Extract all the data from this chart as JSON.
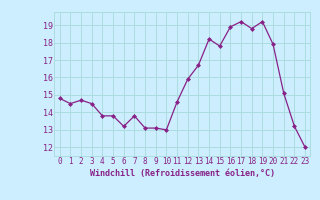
{
  "x": [
    0,
    1,
    2,
    3,
    4,
    5,
    6,
    7,
    8,
    9,
    10,
    11,
    12,
    13,
    14,
    15,
    16,
    17,
    18,
    19,
    20,
    21,
    22,
    23
  ],
  "y": [
    14.8,
    14.5,
    14.7,
    14.5,
    13.8,
    13.8,
    13.2,
    13.8,
    13.1,
    13.1,
    13.0,
    14.6,
    15.9,
    16.7,
    18.2,
    17.8,
    18.9,
    19.2,
    18.8,
    19.2,
    17.9,
    15.1,
    13.2,
    12.0
  ],
  "line_color": "#882288",
  "marker": "D",
  "marker_size": 2.0,
  "bg_color": "#cceeff",
  "grid_color": "#aadddd",
  "xlabel": "Windchill (Refroidissement éolien,°C)",
  "xlabel_color": "#882288",
  "tick_color": "#882288",
  "label_fontsize": 5.5,
  "xlabel_fontsize": 6.0,
  "ylim": [
    11.5,
    19.75
  ],
  "xlim": [
    -0.5,
    23.5
  ],
  "yticks": [
    12,
    13,
    14,
    15,
    16,
    17,
    18,
    19
  ],
  "xticks": [
    0,
    1,
    2,
    3,
    4,
    5,
    6,
    7,
    8,
    9,
    10,
    11,
    12,
    13,
    14,
    15,
    16,
    17,
    18,
    19,
    20,
    21,
    22,
    23
  ]
}
